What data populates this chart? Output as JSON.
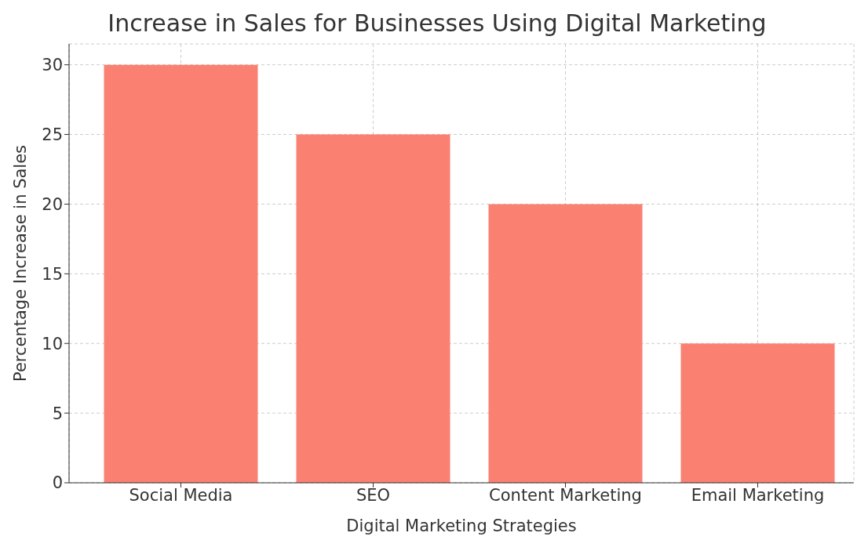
{
  "chart_data": {
    "type": "bar",
    "title": "Increase in Sales for Businesses Using Digital Marketing",
    "xlabel": "Digital Marketing Strategies",
    "ylabel": "Percentage Increase in Sales",
    "categories": [
      "Social Media",
      "SEO",
      "Content Marketing",
      "Email Marketing"
    ],
    "values": [
      30,
      25,
      20,
      10
    ],
    "color": "#fa8072",
    "ylim": [
      0,
      31.5
    ],
    "yticks": [
      0,
      5,
      10,
      15,
      20,
      25,
      30
    ],
    "grid": true
  }
}
